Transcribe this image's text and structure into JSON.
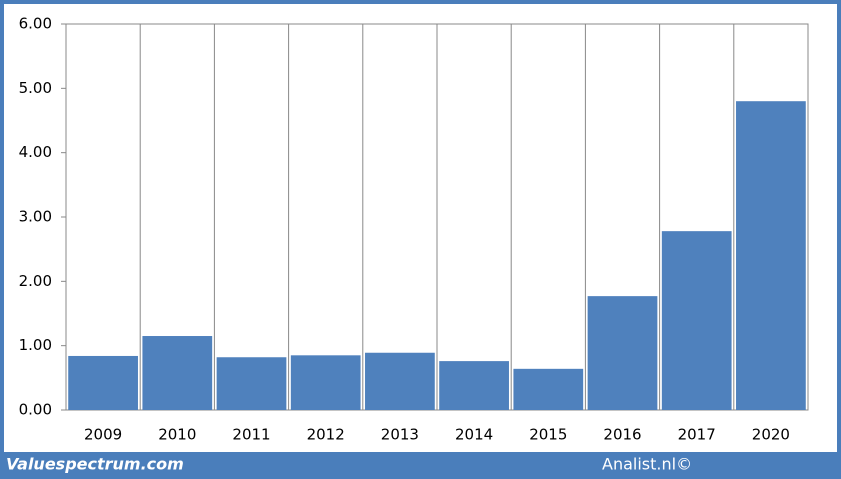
{
  "chart_data": {
    "type": "bar",
    "categories": [
      "2009",
      "2010",
      "2011",
      "2012",
      "2013",
      "2014",
      "2015",
      "2016",
      "2017",
      "2020"
    ],
    "values": [
      0.84,
      1.15,
      0.82,
      0.85,
      0.89,
      0.76,
      0.64,
      1.77,
      2.78,
      4.8
    ],
    "color": "#4f81bd",
    "ylim": [
      0,
      6
    ],
    "yticks": [
      {
        "value": 0,
        "label": "0.00"
      },
      {
        "value": 1,
        "label": "1.00"
      },
      {
        "value": 2,
        "label": "2.00"
      },
      {
        "value": 3,
        "label": "3.00"
      },
      {
        "value": 4,
        "label": "4.00"
      },
      {
        "value": 5,
        "label": "5.00"
      },
      {
        "value": 6,
        "label": "6.00"
      }
    ],
    "grid": true
  },
  "footer": {
    "left": "Valuespectrum.com",
    "right": "Analist.nl©"
  }
}
